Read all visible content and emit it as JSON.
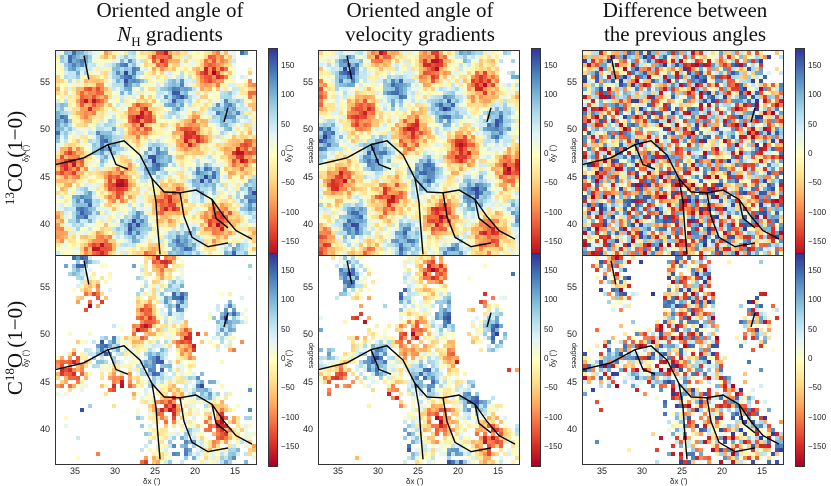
{
  "column_titles": [
    {
      "line1": "Oriented angle of",
      "line2_main": "N",
      "line2_sub": "H",
      "line2_rest": " gradients"
    },
    {
      "line1": "Oriented angle of",
      "line2_main": "velocity gradients",
      "line2_sub": "",
      "line2_rest": ""
    },
    {
      "line1": "Difference between",
      "line2_main": "the previous angles",
      "line2_sub": "",
      "line2_rest": ""
    }
  ],
  "row_titles": [
    {
      "sup": "13",
      "text": "CO (1−0)"
    },
    {
      "pre": "C",
      "sup": "18",
      "text": "O (1−0)"
    }
  ],
  "colors": {
    "low": "#a50026",
    "mid": "#ffffbf",
    "high": "#313695",
    "filament": "#000000"
  },
  "chart_data": {
    "type": "heatmap",
    "colormap": "RdYlBu",
    "xlabel": "δx (')",
    "ylabel": "δy (')",
    "colorbar_label": "degrees",
    "x_ticks": [
      "35",
      "30",
      "25",
      "20",
      "15"
    ],
    "y_ticks": [
      "55",
      "50",
      "45",
      "40"
    ],
    "colorbar_ticks": [
      "150",
      "100",
      "50",
      "0",
      "−50",
      "−100",
      "−150"
    ],
    "colorbar_range": [
      -180,
      180
    ],
    "xlim": [
      37.5,
      12.5
    ],
    "ylim": [
      36.5,
      58.5
    ],
    "panels": [
      {
        "row": "13CO (1-0)",
        "col": "Oriented angle of NH gradients",
        "coverage": "full"
      },
      {
        "row": "13CO (1-0)",
        "col": "Oriented angle of velocity gradients",
        "coverage": "full"
      },
      {
        "row": "13CO (1-0)",
        "col": "Difference between the previous angles",
        "coverage": "full"
      },
      {
        "row": "C18O (1-0)",
        "col": "Oriented angle of NH gradients",
        "coverage": "filaments"
      },
      {
        "row": "C18O (1-0)",
        "col": "Oriented angle of velocity gradients",
        "coverage": "filaments"
      },
      {
        "row": "C18O (1-0)",
        "col": "Difference between the previous angles",
        "coverage": "filaments"
      }
    ]
  }
}
